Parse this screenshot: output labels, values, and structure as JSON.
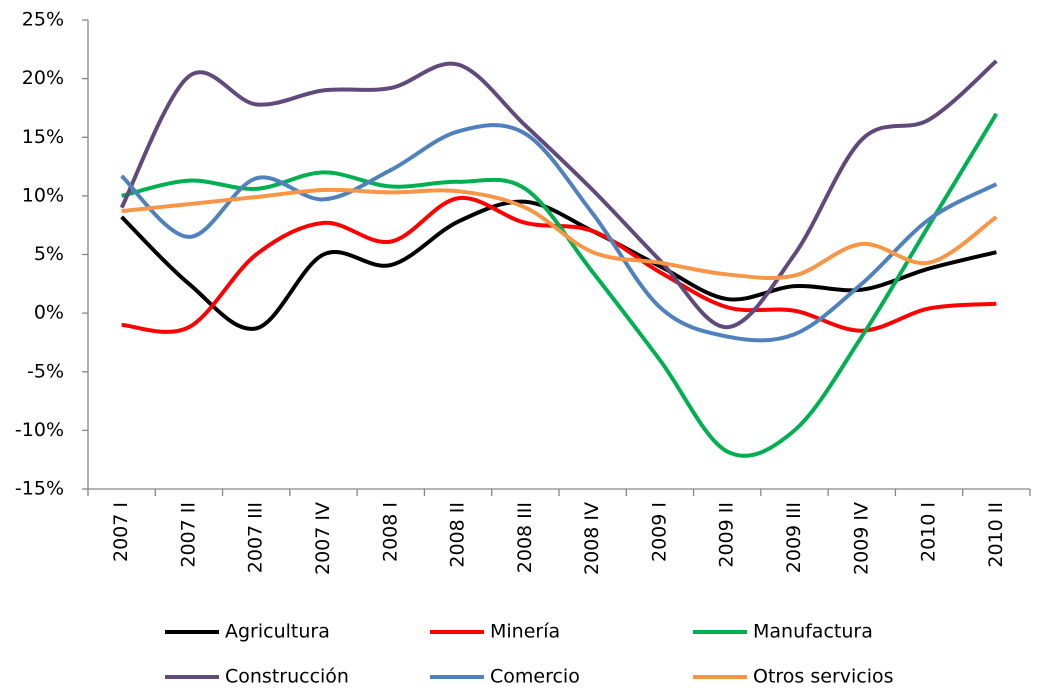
{
  "chart_data": {
    "type": "line",
    "categories": [
      "2007 I",
      "2007 II",
      "2007 III",
      "2007 IV",
      "2008 I",
      "2008 II",
      "2008 III",
      "2008 IV",
      "2009 I",
      "2009 II",
      "2009 III",
      "2009 IV",
      "2010 I",
      "2010 II"
    ],
    "series": [
      {
        "name": "Agricultura",
        "color": "#000000",
        "values": [
          8.2,
          2.5,
          -1.3,
          5.0,
          4.1,
          7.8,
          9.5,
          7.0,
          4.0,
          1.2,
          2.3,
          2.0,
          3.8,
          5.2
        ]
      },
      {
        "name": "Minería",
        "color": "#ff0000",
        "values": [
          -1.0,
          -1.2,
          5.0,
          7.7,
          6.1,
          9.8,
          7.7,
          7.0,
          3.5,
          0.5,
          0.2,
          -1.5,
          0.4,
          0.8
        ]
      },
      {
        "name": "Manufactura",
        "color": "#00b050",
        "values": [
          10.0,
          11.3,
          10.6,
          12.0,
          10.8,
          11.2,
          10.6,
          3.5,
          -4.0,
          -11.8,
          -10.0,
          -2.0,
          7.5,
          17.0
        ]
      },
      {
        "name": "Construcción",
        "color": "#604a7b",
        "values": [
          9.0,
          20.2,
          17.8,
          19.0,
          19.2,
          21.2,
          16.0,
          10.5,
          4.5,
          -1.2,
          5.0,
          14.8,
          16.5,
          21.5
        ]
      },
      {
        "name": "Comercio",
        "color": "#4f81bd",
        "values": [
          11.7,
          6.5,
          11.5,
          9.7,
          12.2,
          15.5,
          15.3,
          8.5,
          0.5,
          -2.0,
          -1.8,
          2.5,
          8.0,
          11.0
        ]
      },
      {
        "name": "Otros servicios",
        "color": "#f79646",
        "values": [
          8.7,
          9.3,
          9.9,
          10.5,
          10.3,
          10.4,
          9.0,
          5.2,
          4.3,
          3.3,
          3.2,
          5.9,
          4.3,
          8.2
        ]
      }
    ],
    "ylim": [
      -15,
      25
    ],
    "yticks": [
      {
        "value": -15,
        "label": "-15%"
      },
      {
        "value": -10,
        "label": "-10%"
      },
      {
        "value": -5,
        "label": "-5%"
      },
      {
        "value": 0,
        "label": "0%"
      },
      {
        "value": 5,
        "label": "5%"
      },
      {
        "value": 10,
        "label": "10%"
      },
      {
        "value": 15,
        "label": "15%"
      },
      {
        "value": 20,
        "label": "20%"
      },
      {
        "value": 25,
        "label": "25%"
      }
    ],
    "smooth": true,
    "grid": false
  }
}
